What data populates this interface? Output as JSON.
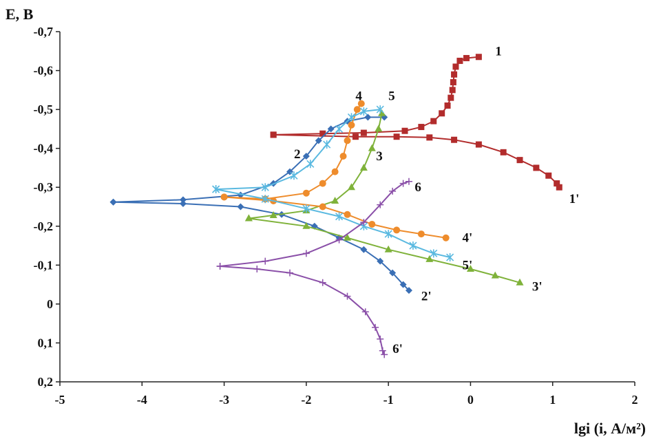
{
  "chart_data": {
    "type": "line",
    "ylabel": "E, В",
    "xlabel": "lgi (i, А/м²)",
    "xlim": [
      -5,
      2
    ],
    "ylim": [
      0.2,
      -0.7
    ],
    "x_ticks": [
      {
        "v": -5,
        "t": "-5"
      },
      {
        "v": -4,
        "t": "-4"
      },
      {
        "v": -3,
        "t": "-3"
      },
      {
        "v": -2,
        "t": "-2"
      },
      {
        "v": -1,
        "t": "-1"
      },
      {
        "v": 0,
        "t": "0"
      },
      {
        "v": 1,
        "t": "1"
      },
      {
        "v": 2,
        "t": "2"
      }
    ],
    "y_ticks": [
      {
        "v": -0.7,
        "t": "-0,7"
      },
      {
        "v": -0.6,
        "t": "-0,6"
      },
      {
        "v": -0.5,
        "t": "-0,5"
      },
      {
        "v": -0.4,
        "t": "-0,4"
      },
      {
        "v": -0.3,
        "t": "-0,3"
      },
      {
        "v": -0.2,
        "t": "-0,2"
      },
      {
        "v": -0.1,
        "t": "-0,1"
      },
      {
        "v": 0,
        "t": "0"
      },
      {
        "v": 0.1,
        "t": "0,1"
      },
      {
        "v": 0.2,
        "t": "0,2"
      }
    ],
    "grid": false,
    "series": [
      {
        "name": "1",
        "color": "#b22c2c",
        "marker": "square",
        "points": [
          [
            -2.4,
            -0.435
          ],
          [
            -1.8,
            -0.438
          ],
          [
            -1.3,
            -0.44
          ],
          [
            -0.8,
            -0.445
          ],
          [
            -0.6,
            -0.455
          ],
          [
            -0.45,
            -0.47
          ],
          [
            -0.35,
            -0.49
          ],
          [
            -0.28,
            -0.51
          ],
          [
            -0.24,
            -0.53
          ],
          [
            -0.22,
            -0.55
          ],
          [
            -0.21,
            -0.57
          ],
          [
            -0.2,
            -0.59
          ],
          [
            -0.18,
            -0.61
          ],
          [
            -0.13,
            -0.625
          ],
          [
            -0.05,
            -0.632
          ],
          [
            0.1,
            -0.635
          ]
        ]
      },
      {
        "name": "1'",
        "color": "#b22c2c",
        "marker": "square",
        "points": [
          [
            -2.4,
            -0.435
          ],
          [
            -1.4,
            -0.43
          ],
          [
            -0.9,
            -0.43
          ],
          [
            -0.5,
            -0.428
          ],
          [
            -0.2,
            -0.422
          ],
          [
            0.1,
            -0.41
          ],
          [
            0.4,
            -0.39
          ],
          [
            0.6,
            -0.37
          ],
          [
            0.8,
            -0.35
          ],
          [
            0.95,
            -0.33
          ],
          [
            1.05,
            -0.31
          ],
          [
            1.08,
            -0.3
          ]
        ]
      },
      {
        "name": "2",
        "color": "#3a6fb5",
        "marker": "diamond",
        "points": [
          [
            -4.35,
            -0.262
          ],
          [
            -3.5,
            -0.268
          ],
          [
            -2.8,
            -0.28
          ],
          [
            -2.4,
            -0.31
          ],
          [
            -2.2,
            -0.34
          ],
          [
            -2.0,
            -0.38
          ],
          [
            -1.85,
            -0.42
          ],
          [
            -1.7,
            -0.45
          ],
          [
            -1.5,
            -0.47
          ],
          [
            -1.25,
            -0.48
          ],
          [
            -1.05,
            -0.48
          ]
        ]
      },
      {
        "name": "2'",
        "color": "#3a6fb5",
        "marker": "diamond",
        "points": [
          [
            -4.35,
            -0.262
          ],
          [
            -3.5,
            -0.258
          ],
          [
            -2.8,
            -0.25
          ],
          [
            -2.3,
            -0.23
          ],
          [
            -1.9,
            -0.2
          ],
          [
            -1.6,
            -0.17
          ],
          [
            -1.3,
            -0.14
          ],
          [
            -1.1,
            -0.11
          ],
          [
            -0.95,
            -0.08
          ],
          [
            -0.82,
            -0.05
          ],
          [
            -0.75,
            -0.035
          ]
        ]
      },
      {
        "name": "3",
        "color": "#7fb23a",
        "marker": "triangle",
        "points": [
          [
            -2.7,
            -0.22
          ],
          [
            -2.4,
            -0.228
          ],
          [
            -2.0,
            -0.24
          ],
          [
            -1.65,
            -0.265
          ],
          [
            -1.45,
            -0.3
          ],
          [
            -1.3,
            -0.35
          ],
          [
            -1.2,
            -0.4
          ],
          [
            -1.12,
            -0.45
          ],
          [
            -1.08,
            -0.49
          ]
        ]
      },
      {
        "name": "3'",
        "color": "#7fb23a",
        "marker": "triangle",
        "points": [
          [
            -2.7,
            -0.22
          ],
          [
            -2.0,
            -0.2
          ],
          [
            -1.5,
            -0.17
          ],
          [
            -1.0,
            -0.14
          ],
          [
            -0.5,
            -0.115
          ],
          [
            0.0,
            -0.09
          ],
          [
            0.3,
            -0.073
          ],
          [
            0.6,
            -0.055
          ]
        ]
      },
      {
        "name": "4",
        "color": "#ee8c2c",
        "marker": "circle",
        "points": [
          [
            -3.0,
            -0.275
          ],
          [
            -2.5,
            -0.27
          ],
          [
            -2.0,
            -0.285
          ],
          [
            -1.8,
            -0.31
          ],
          [
            -1.65,
            -0.34
          ],
          [
            -1.55,
            -0.38
          ],
          [
            -1.5,
            -0.42
          ],
          [
            -1.45,
            -0.46
          ],
          [
            -1.38,
            -0.5
          ],
          [
            -1.33,
            -0.515
          ]
        ]
      },
      {
        "name": "4'",
        "color": "#ee8c2c",
        "marker": "circle",
        "points": [
          [
            -3.0,
            -0.275
          ],
          [
            -2.4,
            -0.265
          ],
          [
            -1.8,
            -0.25
          ],
          [
            -1.5,
            -0.23
          ],
          [
            -1.2,
            -0.205
          ],
          [
            -0.9,
            -0.19
          ],
          [
            -0.6,
            -0.18
          ],
          [
            -0.3,
            -0.17
          ]
        ]
      },
      {
        "name": "5",
        "color": "#5ab9e0",
        "marker": "star",
        "points": [
          [
            -3.1,
            -0.295
          ],
          [
            -2.5,
            -0.3
          ],
          [
            -2.15,
            -0.33
          ],
          [
            -1.95,
            -0.36
          ],
          [
            -1.75,
            -0.41
          ],
          [
            -1.6,
            -0.45
          ],
          [
            -1.45,
            -0.48
          ],
          [
            -1.3,
            -0.495
          ],
          [
            -1.1,
            -0.5
          ]
        ]
      },
      {
        "name": "5'",
        "color": "#5ab9e0",
        "marker": "star",
        "points": [
          [
            -3.1,
            -0.295
          ],
          [
            -2.5,
            -0.27
          ],
          [
            -2.0,
            -0.245
          ],
          [
            -1.6,
            -0.225
          ],
          [
            -1.3,
            -0.2
          ],
          [
            -1.0,
            -0.18
          ],
          [
            -0.7,
            -0.15
          ],
          [
            -0.45,
            -0.13
          ],
          [
            -0.25,
            -0.12
          ]
        ]
      },
      {
        "name": "6",
        "color": "#8a4fa8",
        "marker": "plus",
        "points": [
          [
            -3.05,
            -0.097
          ],
          [
            -2.5,
            -0.11
          ],
          [
            -2.0,
            -0.13
          ],
          [
            -1.6,
            -0.165
          ],
          [
            -1.3,
            -0.21
          ],
          [
            -1.1,
            -0.255
          ],
          [
            -0.95,
            -0.29
          ],
          [
            -0.82,
            -0.31
          ],
          [
            -0.75,
            -0.315
          ]
        ]
      },
      {
        "name": "6'",
        "color": "#8a4fa8",
        "marker": "plus",
        "points": [
          [
            -3.05,
            -0.097
          ],
          [
            -2.6,
            -0.09
          ],
          [
            -2.2,
            -0.08
          ],
          [
            -1.8,
            -0.055
          ],
          [
            -1.5,
            -0.02
          ],
          [
            -1.28,
            0.02
          ],
          [
            -1.16,
            0.06
          ],
          [
            -1.1,
            0.09
          ],
          [
            -1.07,
            0.12
          ],
          [
            -1.05,
            0.13
          ]
        ]
      }
    ],
    "labels": [
      {
        "text": "1",
        "x": 0.3,
        "y": -0.65
      },
      {
        "text": "1'",
        "x": 1.2,
        "y": -0.27
      },
      {
        "text": "2",
        "x": -2.15,
        "y": -0.385
      },
      {
        "text": "2'",
        "x": -0.6,
        "y": -0.02
      },
      {
        "text": "3",
        "x": -1.15,
        "y": -0.38
      },
      {
        "text": "3'",
        "x": 0.75,
        "y": -0.045
      },
      {
        "text": "4",
        "x": -1.4,
        "y": -0.535
      },
      {
        "text": "4'",
        "x": -0.1,
        "y": -0.17
      },
      {
        "text": "5",
        "x": -1.0,
        "y": -0.535
      },
      {
        "text": "5'",
        "x": -0.1,
        "y": -0.1
      },
      {
        "text": "6",
        "x": -0.68,
        "y": -0.3
      },
      {
        "text": "6'",
        "x": -0.95,
        "y": 0.115
      }
    ]
  }
}
